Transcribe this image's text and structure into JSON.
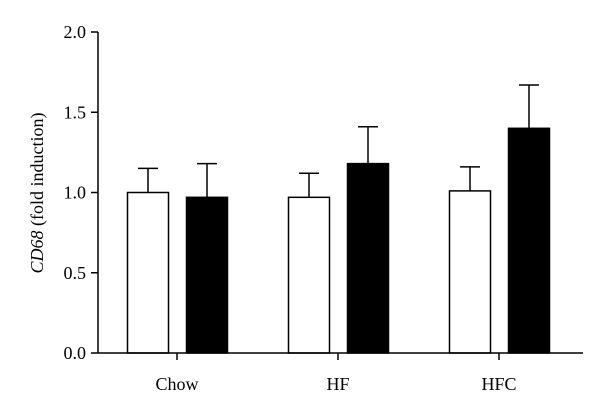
{
  "chart_data": {
    "type": "bar",
    "categories": [
      "Chow",
      "HF",
      "HFC"
    ],
    "series": [
      {
        "values": [
          1.0,
          0.97,
          1.01
        ],
        "errors": [
          0.15,
          0.15,
          0.15
        ],
        "fill": "#ffffff",
        "stroke": "#000000"
      },
      {
        "values": [
          0.97,
          1.18,
          1.4
        ],
        "errors": [
          0.21,
          0.23,
          0.27
        ],
        "fill": "#000000",
        "stroke": "#000000"
      }
    ],
    "ylabel_italic": "CD68",
    "ylabel_rest": " (fold induction)",
    "ylim": [
      0.0,
      2.0
    ],
    "yticks": [
      "0.0",
      "0.5",
      "1.0",
      "1.5",
      "2.0"
    ],
    "grid": false,
    "legend": "none"
  }
}
